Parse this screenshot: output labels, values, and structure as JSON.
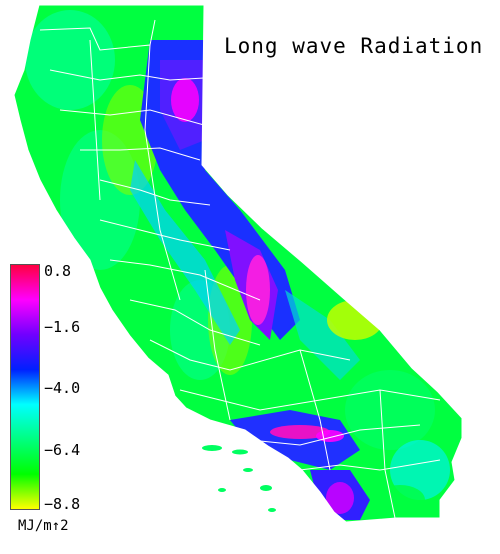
{
  "title": "Long wave Radiation",
  "legend": {
    "units": "MJ/m↑2",
    "ticks": [
      "0.8",
      "−1.6",
      "−4.0",
      "−6.4",
      "−8.8"
    ],
    "range": [
      -8.8,
      0.8
    ],
    "colors": [
      "#ff0040",
      "#ff00ff",
      "#7000ff",
      "#0020ff",
      "#00ffff",
      "#00ff80",
      "#00ff00",
      "#ffff00"
    ]
  },
  "colors": {
    "background": "#ffffff",
    "county_lines": "#ffffff"
  }
}
